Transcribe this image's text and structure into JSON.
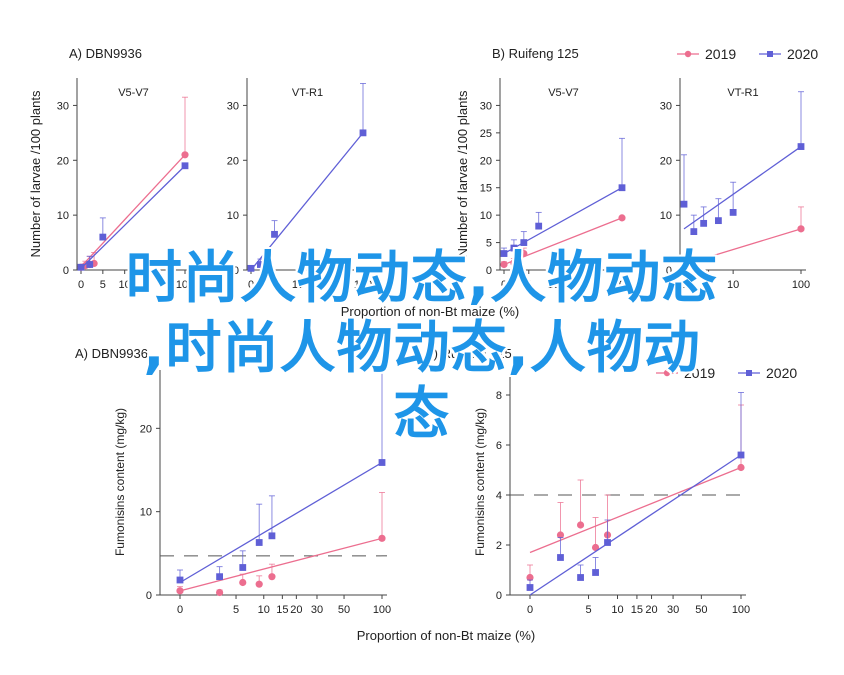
{
  "figure": {
    "legend": [
      {
        "name": "2019",
        "color": "#ec6e8f",
        "marker": "circle"
      },
      {
        "name": "2020",
        "color": "#5f5fd6",
        "marker": "square"
      }
    ],
    "top_ylabel": "Number of larvae /100 plants",
    "bottom_ylabel": "Fumonisins content (mg/kg)",
    "top_xlabel": "Proportion of non-Bt maize (%)",
    "bottom_xlabel": "Proportion of non-Bt maize (%)",
    "overlay_line1": "时尚人物动态,人物动态",
    "overlay_line2": ",时尚人物动态,人物动",
    "overlay_line3": "态"
  },
  "chart_data": [
    {
      "type": "line",
      "panel": "A) DBN9936",
      "subtitle": "V5-V7",
      "ylabel": "Number of larvae /100 plants",
      "ylim": [
        0,
        35
      ],
      "yticks": [
        0,
        10,
        20,
        30
      ],
      "xticks": [
        0,
        5,
        10,
        100
      ],
      "series": [
        {
          "name": "2019",
          "x": [
            0,
            1,
            2,
            3,
            100
          ],
          "y": [
            0.5,
            0.8,
            1,
            1.2,
            21
          ],
          "err": [
            0.5,
            0.8,
            1.5,
            2,
            10.5
          ],
          "fit": [
            [
              0,
              0.6
            ],
            [
              100,
              21
            ]
          ]
        },
        {
          "name": "2020",
          "x": [
            0,
            2,
            5,
            100
          ],
          "y": [
            0.5,
            1,
            6,
            19
          ],
          "err": [
            0.5,
            1.5,
            3.5,
            0
          ],
          "fit": [
            [
              0,
              0.3
            ],
            [
              100,
              19
            ]
          ]
        }
      ]
    },
    {
      "type": "line",
      "panel": "",
      "subtitle": "VT-R1",
      "ylabel": "",
      "ylim": [
        0,
        35
      ],
      "yticks": [
        0,
        10,
        20,
        30
      ],
      "xticks": [
        0,
        5,
        10,
        100
      ],
      "series": [
        {
          "name": "2020",
          "x": [
            0,
            2,
            5,
            100
          ],
          "y": [
            0.3,
            1,
            6.5,
            25
          ],
          "err": [
            0.3,
            1,
            2.5,
            9
          ],
          "fit": [
            [
              0,
              0
            ],
            [
              100,
              25
            ]
          ]
        }
      ]
    },
    {
      "type": "line",
      "panel": "B) Ruifeng 125",
      "subtitle": "V5-V7",
      "ylabel": "Number of larvae /100 plants",
      "ylim": [
        0,
        35
      ],
      "yticks": [
        0,
        5,
        10,
        15,
        20,
        25,
        30
      ],
      "xticks": [
        0,
        5,
        10,
        100
      ],
      "series": [
        {
          "name": "2019",
          "x": [
            0,
            2,
            4,
            100
          ],
          "y": [
            1,
            1.3,
            3,
            9.5
          ],
          "err": [
            0.5,
            0.8,
            1,
            0
          ],
          "fit": [
            [
              0,
              1
            ],
            [
              100,
              9.5
            ]
          ]
        },
        {
          "name": "2020",
          "x": [
            0,
            2,
            4,
            7,
            100
          ],
          "y": [
            3,
            4,
            5,
            8,
            15
          ],
          "err": [
            1,
            1.5,
            2,
            2.5,
            9
          ],
          "fit": [
            [
              0,
              3
            ],
            [
              100,
              15
            ]
          ]
        }
      ]
    },
    {
      "type": "line",
      "panel": "",
      "subtitle": "VT-R1",
      "ylabel": "",
      "ylim": [
        0,
        35
      ],
      "yticks": [
        0,
        10,
        20,
        30
      ],
      "xticks": [
        0,
        5,
        10,
        100
      ],
      "series": [
        {
          "name": "2019",
          "x": [
            0,
            2,
            4,
            100
          ],
          "y": [
            1,
            1.5,
            2,
            7.5
          ],
          "err": [
            0.5,
            0.5,
            0.5,
            4
          ],
          "fit": [
            [
              0,
              1
            ],
            [
              100,
              7.5
            ]
          ]
        },
        {
          "name": "2020",
          "x": [
            0,
            2,
            4,
            7,
            10,
            100
          ],
          "y": [
            12,
            7,
            8.5,
            9,
            10.5,
            22.5
          ],
          "err": [
            9,
            3,
            3,
            4,
            5.5,
            10
          ],
          "fit": [
            [
              0,
              7.5
            ],
            [
              100,
              22.5
            ]
          ]
        }
      ]
    },
    {
      "type": "line",
      "panel": "A) DBN9936",
      "subtitle": "",
      "ylabel": "Fumonisins content (mg/kg)",
      "ylim": [
        0,
        27
      ],
      "yticks": [
        0,
        10,
        20
      ],
      "xticks": [
        0,
        5,
        10,
        15,
        20,
        30,
        50,
        100
      ],
      "dashed_y": 4.7,
      "series": [
        {
          "name": "2019",
          "x": [
            0,
            3,
            6,
            9,
            12,
            100
          ],
          "y": [
            0.5,
            0.3,
            1.5,
            1.3,
            2.2,
            6.8
          ],
          "err": [
            0.5,
            0.3,
            1,
            1,
            1.5,
            5.5
          ],
          "fit": [
            [
              0,
              0.5
            ],
            [
              100,
              6.8
            ]
          ]
        },
        {
          "name": "2020",
          "x": [
            0,
            3,
            6,
            9,
            12,
            100
          ],
          "y": [
            1.8,
            2.2,
            3.3,
            6.3,
            7.1,
            15.9
          ],
          "err": [
            1.2,
            1.2,
            2,
            4.6,
            4.8,
            11.3
          ],
          "fit": [
            [
              0,
              1.5
            ],
            [
              100,
              15.9
            ]
          ]
        }
      ]
    },
    {
      "type": "line",
      "panel": "B) Ruifeng 125",
      "subtitle": "",
      "ylabel": "Fumonisins content (mg/kg)",
      "ylim": [
        0,
        9
      ],
      "yticks": [
        0,
        2,
        4,
        6,
        8
      ],
      "xticks": [
        0,
        5,
        10,
        15,
        20,
        30,
        50,
        100
      ],
      "dashed_y": 4,
      "series": [
        {
          "name": "2019",
          "x": [
            0,
            2,
            4,
            6,
            8,
            100
          ],
          "y": [
            0.7,
            2.4,
            2.8,
            1.9,
            2.4,
            5.1
          ],
          "err": [
            0.5,
            1.3,
            1.8,
            1.2,
            1.6,
            2.5
          ],
          "fit": [
            [
              0,
              1.7
            ],
            [
              100,
              5.1
            ]
          ]
        },
        {
          "name": "2020",
          "x": [
            0,
            2,
            4,
            6,
            8,
            100
          ],
          "y": [
            0.3,
            1.5,
            0.7,
            0.9,
            2.1,
            5.6
          ],
          "err": [
            0.3,
            0.8,
            0.5,
            0.6,
            0.9,
            2.5
          ],
          "fit": [
            [
              0,
              0
            ],
            [
              100,
              5.6
            ]
          ]
        }
      ]
    }
  ]
}
